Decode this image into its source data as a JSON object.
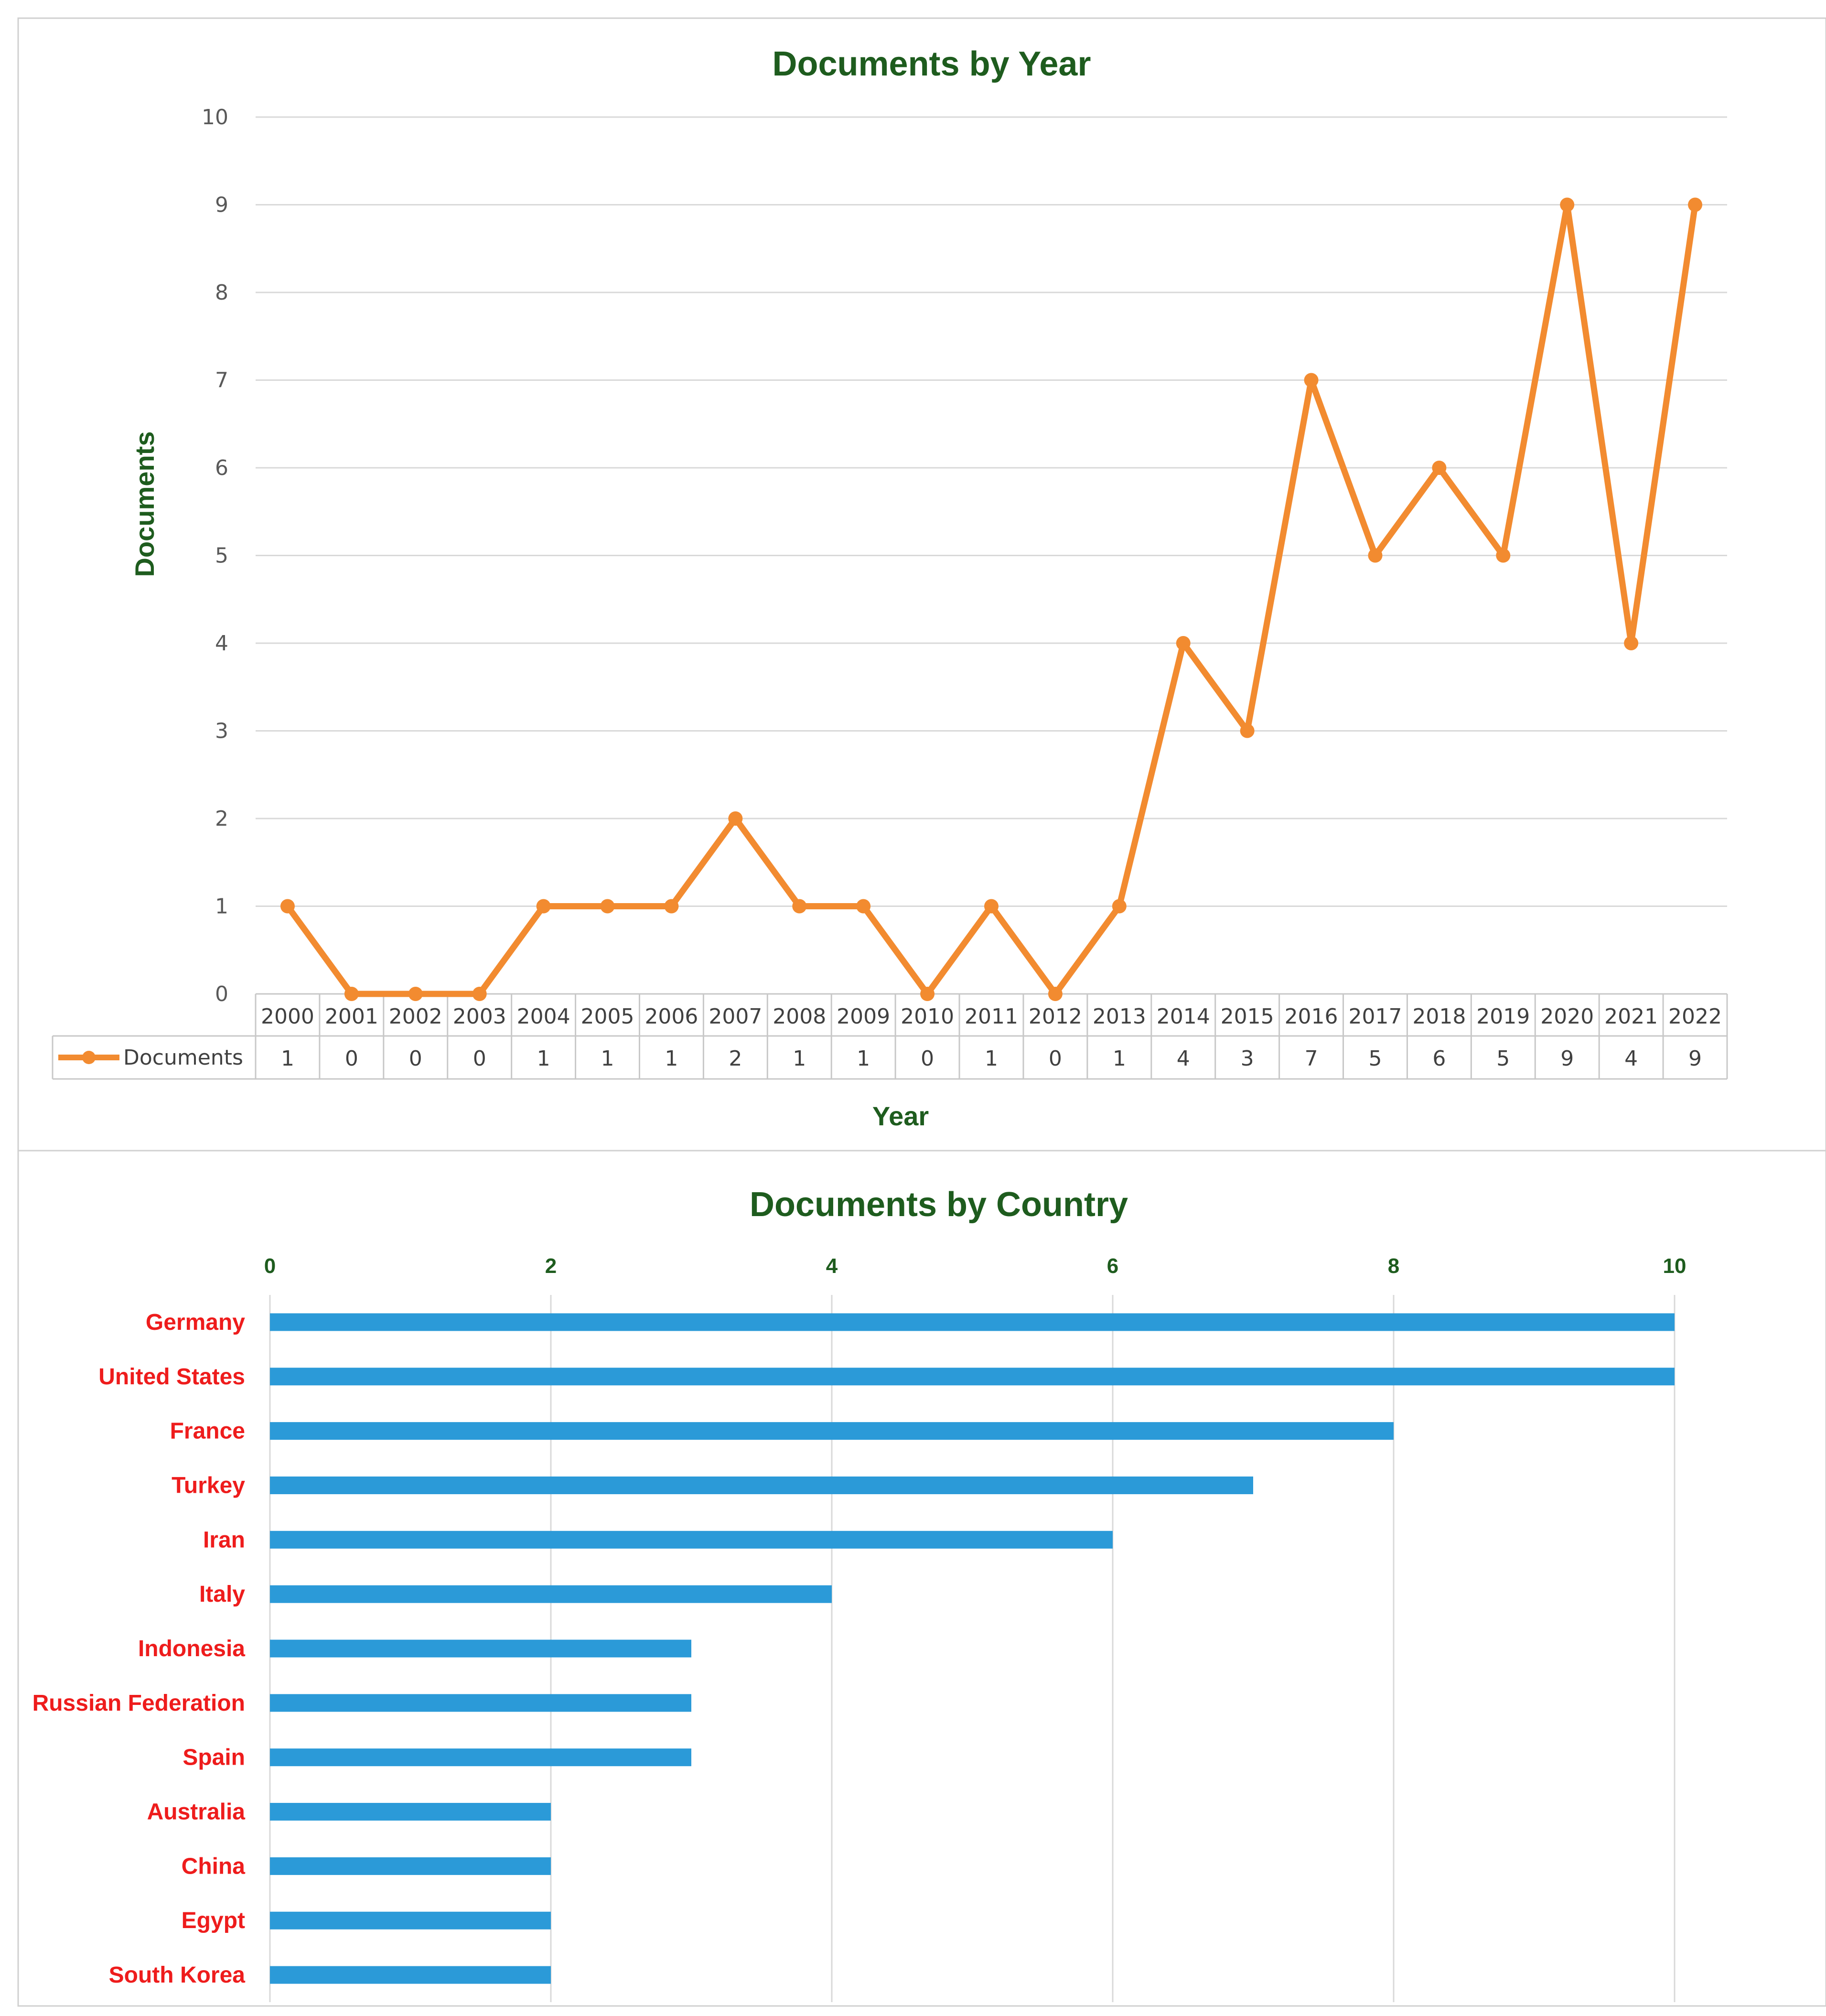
{
  "colors": {
    "title": "#1e5c1e",
    "line": "#f28b30",
    "bar": "#2b9ad8",
    "country_label": "#ee1c1c",
    "axis_text": "#595959"
  },
  "chart_data": [
    {
      "type": "line",
      "title": "Documents by Year",
      "xlabel": "Year",
      "ylabel": "Documents",
      "ylim": [
        0,
        10
      ],
      "yticks": [
        "0",
        "1",
        "2",
        "3",
        "4",
        "5",
        "6",
        "7",
        "8",
        "9",
        "10"
      ],
      "grid": true,
      "categories": [
        "2000",
        "2001",
        "2002",
        "2003",
        "2004",
        "2005",
        "2006",
        "2007",
        "2008",
        "2009",
        "2010",
        "2011",
        "2012",
        "2013",
        "2014",
        "2015",
        "2016",
        "2017",
        "2018",
        "2019",
        "2020",
        "2021",
        "2022"
      ],
      "series": [
        {
          "name": "Documents",
          "values": [
            1,
            0,
            0,
            0,
            1,
            1,
            1,
            2,
            1,
            1,
            0,
            1,
            0,
            1,
            4,
            3,
            7,
            5,
            6,
            5,
            9,
            4,
            9
          ]
        }
      ],
      "data_table": true
    },
    {
      "type": "bar",
      "orientation": "horizontal",
      "title": "Documents by Country",
      "xlim": [
        0,
        10
      ],
      "xticks": [
        "0",
        "2",
        "4",
        "6",
        "8",
        "10"
      ],
      "xaxis_position": "top",
      "grid": true,
      "categories": [
        "Germany",
        "United States",
        "France",
        "Turkey",
        "Iran",
        "Italy",
        "Indonesia",
        "Russian Federation",
        "Spain",
        "Australia",
        "China",
        "Egypt",
        "South Korea"
      ],
      "values": [
        10,
        10,
        8,
        7,
        6,
        4,
        3,
        3,
        3,
        2,
        2,
        2,
        2
      ]
    }
  ]
}
